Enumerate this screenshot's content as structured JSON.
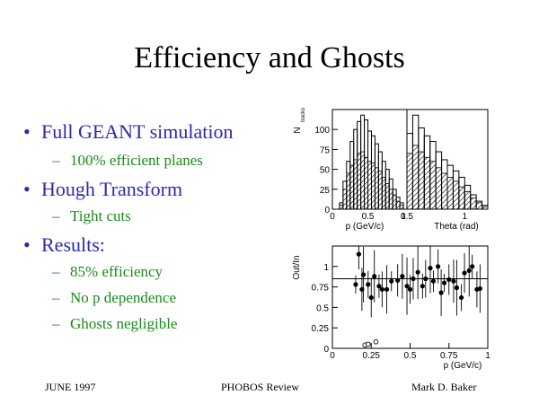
{
  "slide": {
    "title": "Efficiency and Ghosts",
    "bullets": [
      {
        "text": "Full GEANT simulation",
        "subs": [
          "100% efficient planes"
        ]
      },
      {
        "text": "Hough Transform",
        "subs": [
          "Tight cuts"
        ]
      },
      {
        "text": "Results:",
        "subs": [
          "85% efficiency",
          "No p dependence",
          "Ghosts negligible"
        ]
      }
    ],
    "footer": {
      "left": "JUNE 1997",
      "center": "PHOBOS Review",
      "right": "Mark D. Baker"
    }
  },
  "chart_data": [
    {
      "type": "bar",
      "panel": "momentum histogram",
      "ylabel": "N",
      "ylabel_sub": "tracks",
      "xlabel": "p (GeV/c)",
      "xlim": [
        0,
        1.05
      ],
      "ylim": [
        0,
        125
      ],
      "x_ticks": [
        "0",
        "0.5",
        "1"
      ],
      "y_ticks": [
        "0",
        "25",
        "50",
        "75",
        "100"
      ],
      "bin_width": 0.05,
      "bin_start": 0.1,
      "series": [
        {
          "values": [
            8,
            35,
            60,
            85,
            100,
            110,
            118,
            112,
            98,
            92,
            82,
            72,
            60,
            50,
            38,
            25,
            15,
            8
          ]
        },
        {
          "values": [
            5,
            25,
            45,
            55,
            62,
            70,
            72,
            65,
            60,
            58,
            52,
            48,
            40,
            32,
            25,
            18,
            10,
            5
          ]
        }
      ]
    },
    {
      "type": "bar",
      "panel": "theta histogram",
      "xlabel": "Theta (rad)",
      "xlim": [
        0.5,
        1.2
      ],
      "x_ticks": [
        "0.5",
        "1"
      ],
      "bin_width": 0.05,
      "bin_start": 0.5,
      "series": [
        {
          "values": [
            95,
            118,
            102,
            92,
            85,
            72,
            62,
            55,
            48,
            40,
            30,
            18,
            10,
            5
          ]
        },
        {
          "values": [
            70,
            80,
            72,
            65,
            60,
            52,
            45,
            40,
            35,
            28,
            22,
            14,
            8,
            3
          ]
        }
      ]
    },
    {
      "type": "scatter",
      "panel": "efficiency vs momentum",
      "ylabel": "Out/In",
      "xlabel": "p (GeV/c)",
      "xlim": [
        0,
        1
      ],
      "ylim": [
        0,
        1.25
      ],
      "x_ticks": [
        "0",
        "0.25",
        "0.5",
        "0.75",
        "1"
      ],
      "y_ticks": [
        "0",
        "0.25",
        "0.5",
        "0.75",
        "1"
      ],
      "reference_line": 0.85,
      "series": [
        {
          "name": "",
          "x": [
            0.15,
            0.17,
            0.19,
            0.2,
            0.23,
            0.25,
            0.27,
            0.3,
            0.32,
            0.35,
            0.38,
            0.42,
            0.45,
            0.48,
            0.5,
            0.52,
            0.55,
            0.58,
            0.6,
            0.63,
            0.65,
            0.68,
            0.7,
            0.72,
            0.75,
            0.78,
            0.8,
            0.83,
            0.85,
            0.88,
            0.9,
            0.93,
            0.95
          ],
          "y": [
            0.78,
            1.15,
            0.72,
            0.9,
            0.78,
            0.62,
            0.88,
            0.76,
            0.72,
            0.72,
            0.82,
            0.83,
            0.88,
            0.76,
            0.72,
            0.85,
            0.93,
            0.76,
            0.85,
            0.98,
            0.82,
            1.0,
            0.68,
            0.8,
            0.84,
            0.82,
            0.74,
            0.62,
            0.92,
            0.95,
            1.0,
            0.72,
            0.73
          ]
        },
        {
          "name": "",
          "x": [
            0.21,
            0.23,
            0.28
          ],
          "y": [
            0.04,
            0.05,
            0.08
          ]
        }
      ]
    }
  ]
}
